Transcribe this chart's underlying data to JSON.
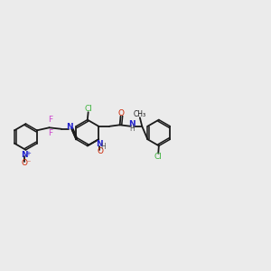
{
  "bg_color": "#ebebeb",
  "bond_color": "#1a1a1a",
  "cl_color": "#3db33d",
  "n_color": "#2222cc",
  "o_color": "#cc2200",
  "f_color": "#cc44cc",
  "lw": 1.3,
  "ring_r": 0.048,
  "xlim": [
    0.0,
    1.0
  ],
  "ylim": [
    0.25,
    0.75
  ]
}
